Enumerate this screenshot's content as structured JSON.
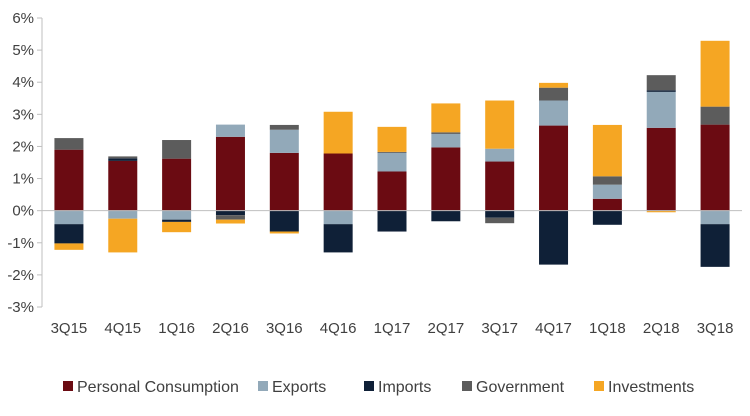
{
  "chart_data": {
    "type": "stacked-bar",
    "categories": [
      "3Q15",
      "4Q15",
      "1Q16",
      "2Q16",
      "3Q16",
      "4Q16",
      "1Q17",
      "2Q17",
      "3Q17",
      "4Q17",
      "1Q18",
      "2Q18",
      "3Q18"
    ],
    "ylim": [
      -3,
      6
    ],
    "yticks": [
      "-3%",
      "-2%",
      "-1%",
      "0%",
      "1%",
      "2%",
      "3%",
      "4%",
      "5%",
      "6%"
    ],
    "series": [
      {
        "name": "Personal Consumption",
        "color": "#6b0b12",
        "values": [
          1.9,
          1.55,
          1.62,
          2.3,
          1.8,
          1.78,
          1.22,
          1.97,
          1.53,
          2.65,
          0.37,
          2.58,
          2.68
        ]
      },
      {
        "name": "Exports",
        "color": "#92a9b9",
        "values": [
          -0.42,
          -0.25,
          -0.28,
          0.38,
          0.72,
          -0.42,
          0.58,
          0.42,
          0.4,
          0.78,
          0.44,
          1.12,
          -0.42
        ]
      },
      {
        "name": "Imports",
        "color": "#0f2037",
        "values": [
          -0.6,
          0.08,
          -0.07,
          -0.14,
          -0.65,
          -0.88,
          -0.65,
          -0.33,
          -0.22,
          -1.68,
          -0.44,
          0.05,
          -1.33
        ]
      },
      {
        "name": "Government",
        "color": "#5c5c5c",
        "values": [
          0.36,
          0.06,
          0.58,
          -0.14,
          0.15,
          0,
          0.03,
          0.05,
          -0.17,
          0.4,
          0.26,
          0.47,
          0.56
        ]
      },
      {
        "name": "Investments",
        "color": "#f5a623",
        "values": [
          -0.2,
          -1.05,
          -0.32,
          -0.12,
          -0.06,
          1.3,
          0.78,
          0.9,
          1.5,
          0.15,
          1.6,
          -0.05,
          2.05
        ]
      }
    ],
    "legend_position": "bottom",
    "grid": false
  },
  "legend": {
    "items": [
      {
        "label": "Personal Consumption",
        "color": "#6b0b12"
      },
      {
        "label": "Exports",
        "color": "#92a9b9"
      },
      {
        "label": "Imports",
        "color": "#0f2037"
      },
      {
        "label": "Government",
        "color": "#5c5c5c"
      },
      {
        "label": "Investments",
        "color": "#f5a623"
      }
    ]
  }
}
